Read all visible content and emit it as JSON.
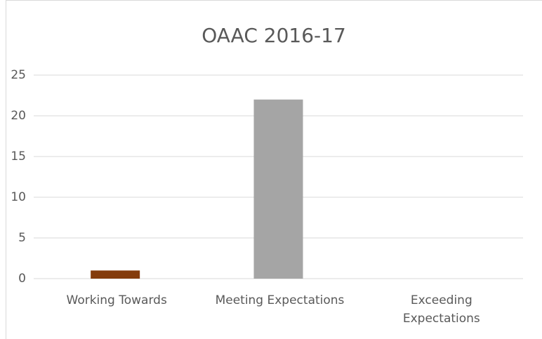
{
  "chart_data": {
    "type": "bar",
    "title": "OAAC 2016-17",
    "categories": [
      "Working Towards",
      "Meeting Expectations",
      "Exceeding Expectations"
    ],
    "values": [
      1,
      22,
      0
    ],
    "colors": [
      "#843c0c",
      "#a5a5a5",
      "#ffc000"
    ],
    "ylim": [
      0,
      25
    ],
    "yticks": [
      0,
      5,
      10,
      15,
      20,
      25
    ],
    "grid": true
  }
}
